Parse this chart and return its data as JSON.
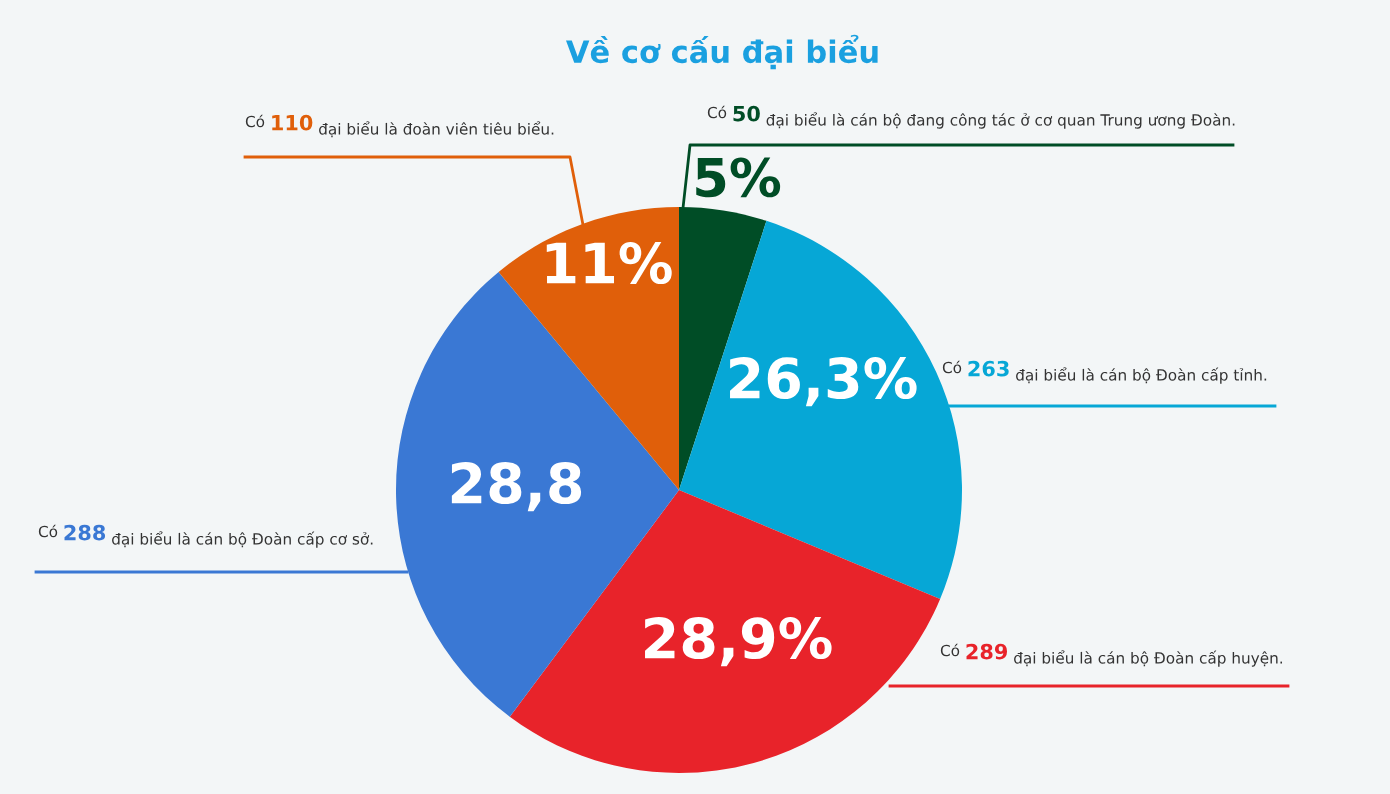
{
  "chart_data": {
    "type": "pie",
    "title": "Về cơ cấu đại biểu",
    "categories": [
      "Có 50 đại biểu là cán bộ đang công tác ở cơ quan Trung ương Đoàn.",
      "Có 263 đại biểu là cán bộ Đoàn cấp tỉnh.",
      "Có 289 đại biểu là cán bộ Đoàn cấp huyện.",
      "Có 288 đại biểu là cán bộ Đoàn cấp cơ sở.",
      "Có 110 đại biểu là đoàn viên tiêu biểu."
    ],
    "values": [
      5,
      26.3,
      28.9,
      28.8,
      11
    ],
    "colors": [
      "#004d26",
      "#06a7d6",
      "#e8232a",
      "#3a78d4",
      "#e05f0a"
    ],
    "value_labels": [
      "5%",
      "26,3%",
      "28,9%",
      "28,8",
      "11%"
    ]
  }
}
